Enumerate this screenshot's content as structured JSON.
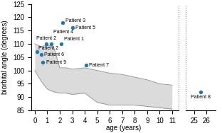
{
  "chart_data": [
    {
      "type": "scatter",
      "xlabel": "age (years)",
      "ylabel": "biorbital angle (degrees)",
      "xlim": [
        -0.3,
        11.5
      ],
      "xticks": [
        0,
        1,
        2,
        3,
        4,
        5,
        6,
        7,
        8,
        9,
        10,
        11
      ],
      "ylim": [
        85,
        125
      ],
      "yticks": [
        85,
        90,
        95,
        100,
        105,
        110,
        115,
        120,
        125
      ],
      "series": [
        {
          "type": "band",
          "x": [
            0,
            0.5,
            1,
            1.5,
            2,
            2.5,
            3,
            4,
            5,
            6,
            7,
            8,
            9,
            10,
            11
          ],
          "upper": [
            110,
            109,
            109.5,
            109,
            101,
            101,
            100.5,
            101,
            100,
            99,
            98.5,
            97.5,
            96.5,
            95,
            94.5
          ],
          "lower": [
            100,
            96,
            93,
            92,
            91.5,
            91.5,
            91,
            91.5,
            88,
            87,
            87,
            87,
            86.5,
            86,
            85.5
          ],
          "color": "#999999"
        },
        {
          "type": "scatter",
          "x": [
            0.15,
            0.5,
            0.65,
            0.9,
            1.3,
            2.1,
            2.2,
            3.0,
            4.1
          ],
          "values": [
            107,
            106,
            103,
            110,
            110,
            110,
            118,
            116,
            102
          ],
          "labels": [
            "Patient 2",
            "Patient 6",
            "Patient 9",
            "Patient 2",
            "Patient 4",
            "Patient 1",
            "Patient 3",
            "Patient 5",
            "Patient 7"
          ]
        }
      ]
    },
    {
      "type": "scatter",
      "xlim": [
        24.3,
        26.7
      ],
      "xticks": [
        25,
        26
      ],
      "ylim": [
        85,
        125
      ],
      "tick_labels": "x",
      "series": [
        {
          "type": "scatter",
          "x": [
            25.5
          ],
          "values": [
            92
          ],
          "labels": [
            "Patient 8"
          ]
        }
      ]
    }
  ]
}
